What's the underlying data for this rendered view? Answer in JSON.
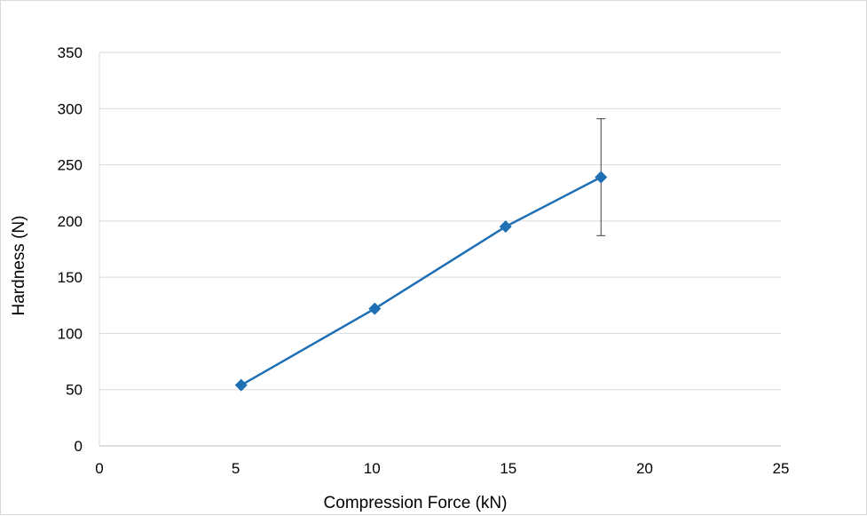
{
  "chart_data": {
    "type": "line",
    "title": "",
    "xlabel": "Compression Force (kN)",
    "ylabel": "Hardness (N)",
    "xlim": [
      0,
      25
    ],
    "ylim": [
      0,
      350
    ],
    "x_ticks": [
      "0",
      "5",
      "10",
      "15",
      "20",
      "25"
    ],
    "y_ticks": [
      "0",
      "50",
      "100",
      "150",
      "200",
      "250",
      "300",
      "350"
    ],
    "grid": "horizontal",
    "legend": "none",
    "series": [
      {
        "color": "#1f6fb4",
        "marker": "diamond",
        "points": [
          {
            "x": 5.2,
            "y": 54
          },
          {
            "x": 10.1,
            "y": 122
          },
          {
            "x": 14.9,
            "y": 195
          },
          {
            "x": 18.4,
            "y": 239,
            "err_low": 187,
            "err_high": 291
          }
        ]
      }
    ]
  }
}
